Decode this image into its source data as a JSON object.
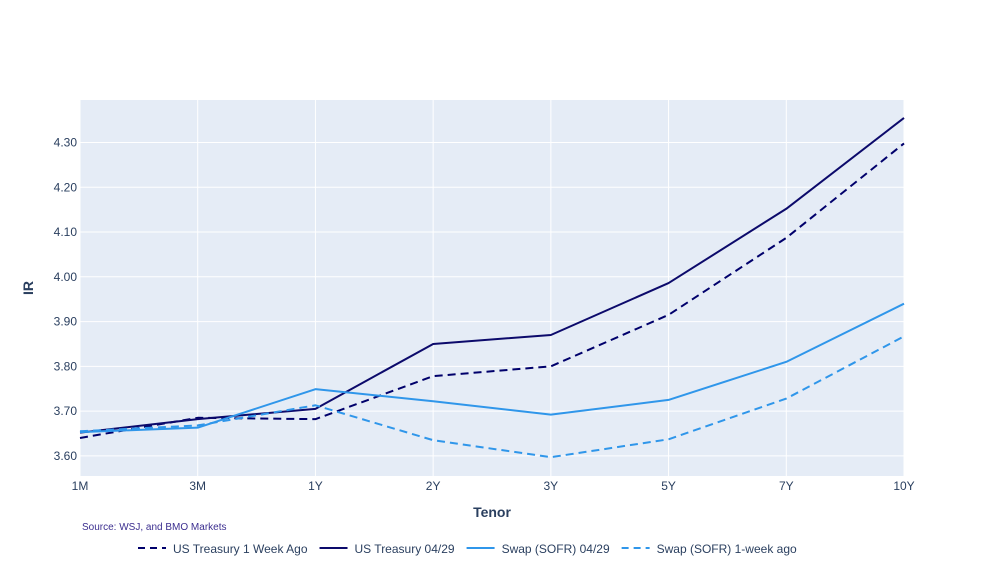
{
  "chart_data": {
    "type": "line",
    "title": "",
    "xlabel": "Tenor",
    "ylabel": "IR",
    "categories": [
      "1M",
      "3M",
      "1Y",
      "2Y",
      "3Y",
      "5Y",
      "7Y",
      "10Y"
    ],
    "y_ticks": [
      "3.60",
      "3.70",
      "3.80",
      "3.90",
      "4.00",
      "4.10",
      "4.20",
      "4.30"
    ],
    "ylim": [
      3.555,
      4.395
    ],
    "grid": true,
    "legend_position": "bottom",
    "source_note": "Source: WSJ, and BMO Markets",
    "series": [
      {
        "name": "US Treasury 1 Week Ago",
        "color": "#00006b",
        "dash": "dashed",
        "values": [
          3.64,
          3.685,
          3.682,
          3.778,
          3.8,
          3.915,
          4.087,
          4.298
        ]
      },
      {
        "name": "US Treasury 04/29",
        "color": "#0c0a6b",
        "dash": "solid",
        "values": [
          3.652,
          3.682,
          3.705,
          3.85,
          3.87,
          3.986,
          4.152,
          4.355
        ]
      },
      {
        "name": "Swap (SOFR) 04/29",
        "color": "#2f96ea",
        "dash": "solid",
        "values": [
          3.653,
          3.663,
          3.749,
          3.722,
          3.692,
          3.725,
          3.81,
          3.94
        ]
      },
      {
        "name": "Swap (SOFR) 1-week ago",
        "color": "#2f96ea",
        "dash": "dashed",
        "values": [
          3.655,
          3.668,
          3.713,
          3.635,
          3.597,
          3.637,
          3.728,
          3.867
        ]
      }
    ]
  }
}
